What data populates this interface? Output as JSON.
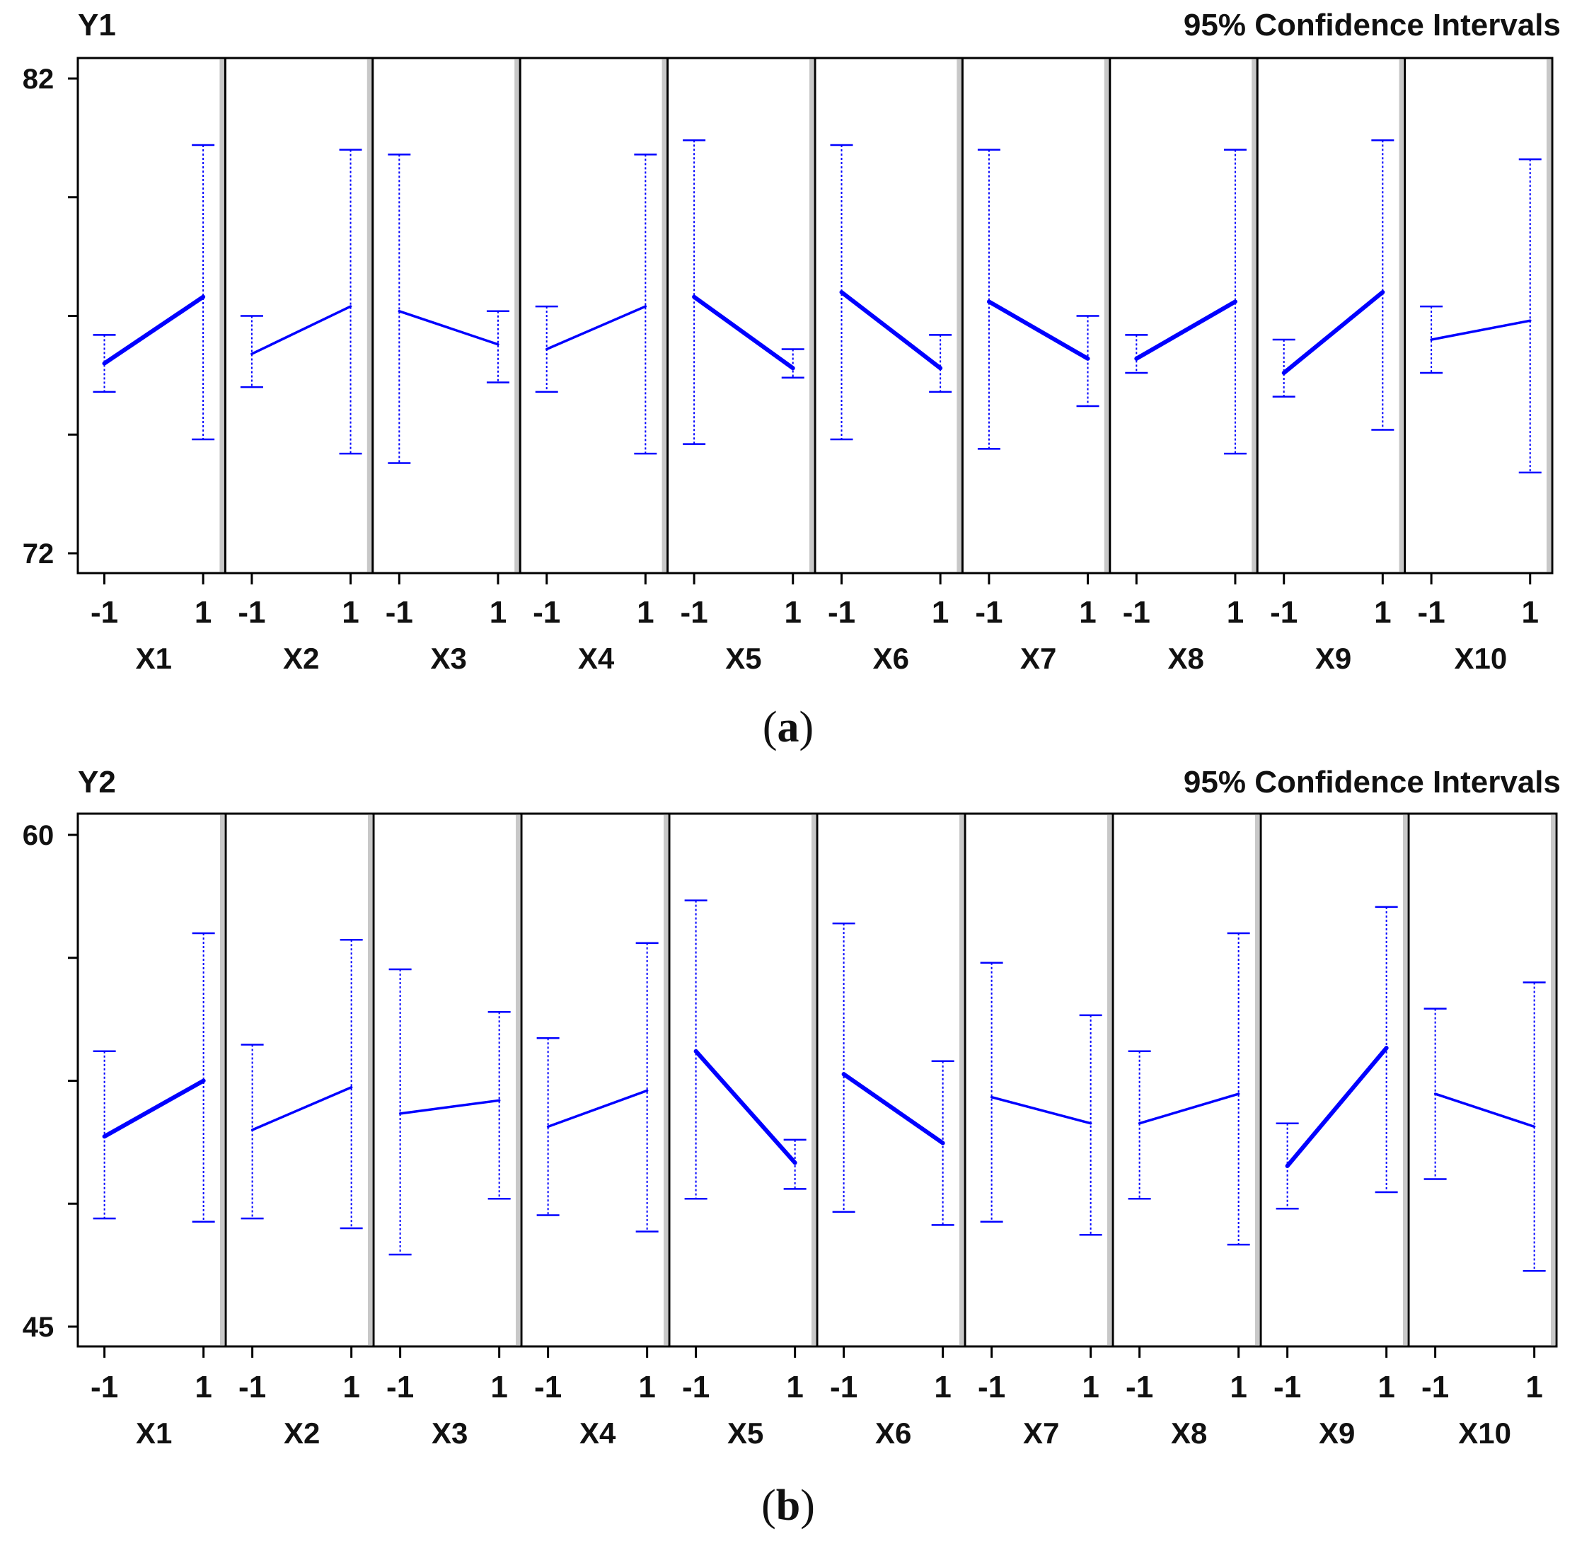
{
  "chart_data": [
    {
      "type": "line",
      "panel_label": "a",
      "response": "Y1",
      "title": "95% Confidence Intervals",
      "ylim": [
        72,
        82
      ],
      "yticks": [
        72,
        82
      ],
      "x_levels": [
        "-1",
        "1"
      ],
      "colors": {
        "series": "#0000ff",
        "frame": "#000000"
      },
      "factors": [
        {
          "name": "X1",
          "mean": [
            76.0,
            77.4
          ],
          "lower": [
            75.4,
            74.4
          ],
          "upper": [
            76.6,
            80.6
          ]
        },
        {
          "name": "X2",
          "mean": [
            76.2,
            77.2
          ],
          "lower": [
            75.5,
            74.1
          ],
          "upper": [
            77.0,
            80.5
          ]
        },
        {
          "name": "X3",
          "mean": [
            77.1,
            76.4
          ],
          "lower": [
            73.9,
            75.6
          ],
          "upper": [
            80.4,
            77.1
          ]
        },
        {
          "name": "X4",
          "mean": [
            76.3,
            77.2
          ],
          "lower": [
            75.4,
            74.1
          ],
          "upper": [
            77.2,
            80.4
          ]
        },
        {
          "name": "X5",
          "mean": [
            77.4,
            75.9
          ],
          "lower": [
            74.3,
            75.7
          ],
          "upper": [
            80.7,
            76.3
          ]
        },
        {
          "name": "X6",
          "mean": [
            77.5,
            75.9
          ],
          "lower": [
            74.4,
            75.4
          ],
          "upper": [
            80.6,
            76.6
          ]
        },
        {
          "name": "X7",
          "mean": [
            77.3,
            76.1
          ],
          "lower": [
            74.2,
            75.1
          ],
          "upper": [
            80.5,
            77.0
          ]
        },
        {
          "name": "X8",
          "mean": [
            76.1,
            77.3
          ],
          "lower": [
            75.8,
            74.1
          ],
          "upper": [
            76.6,
            80.5
          ]
        },
        {
          "name": "X9",
          "mean": [
            75.8,
            77.5
          ],
          "lower": [
            75.3,
            74.6
          ],
          "upper": [
            76.5,
            80.7
          ]
        },
        {
          "name": "X10",
          "mean": [
            76.5,
            76.9
          ],
          "lower": [
            75.8,
            73.7
          ],
          "upper": [
            77.2,
            80.3
          ]
        }
      ]
    },
    {
      "type": "line",
      "panel_label": "b",
      "response": "Y2",
      "title": "95% Confidence Intervals",
      "ylim": [
        45,
        60
      ],
      "yticks": [
        45,
        60
      ],
      "x_levels": [
        "-1",
        "1"
      ],
      "colors": {
        "series": "#0000ff",
        "frame": "#000000"
      },
      "factors": [
        {
          "name": "X1",
          "mean": [
            50.8,
            52.5
          ],
          "lower": [
            48.3,
            48.2
          ],
          "upper": [
            53.4,
            57.0
          ]
        },
        {
          "name": "X2",
          "mean": [
            51.0,
            52.3
          ],
          "lower": [
            48.3,
            48.0
          ],
          "upper": [
            53.6,
            56.8
          ]
        },
        {
          "name": "X3",
          "mean": [
            51.5,
            51.9
          ],
          "lower": [
            47.2,
            48.9
          ],
          "upper": [
            55.9,
            54.6
          ]
        },
        {
          "name": "X4",
          "mean": [
            51.1,
            52.2
          ],
          "lower": [
            48.4,
            47.9
          ],
          "upper": [
            53.8,
            56.7
          ]
        },
        {
          "name": "X5",
          "mean": [
            53.4,
            50.0
          ],
          "lower": [
            48.9,
            49.2
          ],
          "upper": [
            58.0,
            50.7
          ]
        },
        {
          "name": "X6",
          "mean": [
            52.7,
            50.6
          ],
          "lower": [
            48.5,
            48.1
          ],
          "upper": [
            57.3,
            53.1
          ]
        },
        {
          "name": "X7",
          "mean": [
            52.0,
            51.2
          ],
          "lower": [
            48.2,
            47.8
          ],
          "upper": [
            56.1,
            54.5
          ]
        },
        {
          "name": "X8",
          "mean": [
            51.2,
            52.1
          ],
          "lower": [
            48.9,
            47.5
          ],
          "upper": [
            53.4,
            57.0
          ]
        },
        {
          "name": "X9",
          "mean": [
            49.9,
            53.5
          ],
          "lower": [
            48.6,
            49.1
          ],
          "upper": [
            51.2,
            57.8
          ]
        },
        {
          "name": "X10",
          "mean": [
            52.1,
            51.1
          ],
          "lower": [
            49.5,
            46.7
          ],
          "upper": [
            54.7,
            55.5
          ]
        }
      ]
    }
  ]
}
